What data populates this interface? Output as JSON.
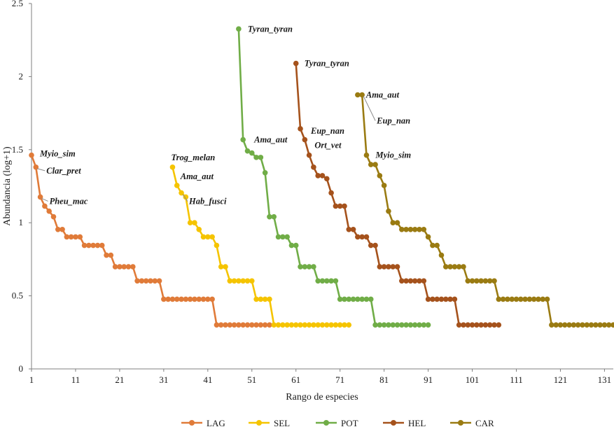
{
  "chart_data": {
    "type": "line",
    "title": "",
    "xlabel": "Rango de especies",
    "ylabel": "Abundancia (log+1)",
    "xlim": [
      1,
      133
    ],
    "ylim": [
      0,
      2.5
    ],
    "x_ticks": [
      1,
      11,
      21,
      31,
      41,
      51,
      61,
      71,
      81,
      91,
      101,
      111,
      121,
      131
    ],
    "y_ticks": [
      0,
      0.5,
      1,
      1.5,
      2,
      2.5
    ],
    "y_tick_labels": [
      "0",
      "0.5",
      "1",
      "1.5",
      "2",
      "2.5"
    ],
    "legend_position": "bottom-center",
    "series": [
      {
        "name": "LAG",
        "color": "#e07b39",
        "start": 1,
        "values": [
          1.462,
          1.38,
          1.176,
          1.114,
          1.079,
          1.041,
          0.954,
          0.954,
          0.903,
          0.903,
          0.903,
          0.903,
          0.845,
          0.845,
          0.845,
          0.845,
          0.845,
          0.778,
          0.778,
          0.699,
          0.699,
          0.699,
          0.699,
          0.699,
          0.602,
          0.602,
          0.602,
          0.602,
          0.602,
          0.602,
          0.477,
          0.477,
          0.477,
          0.477,
          0.477,
          0.477,
          0.477,
          0.477,
          0.477,
          0.477,
          0.477,
          0.477,
          0.301,
          0.301,
          0.301,
          0.301,
          0.301,
          0.301,
          0.301,
          0.301,
          0.301,
          0.301,
          0.301,
          0.301,
          0.301
        ]
      },
      {
        "name": "SEL",
        "color": "#f5c400",
        "start": 33,
        "values": [
          1.38,
          1.255,
          1.204,
          1.176,
          1.0,
          1.0,
          0.954,
          0.903,
          0.903,
          0.903,
          0.845,
          0.699,
          0.699,
          0.602,
          0.602,
          0.602,
          0.602,
          0.602,
          0.602,
          0.477,
          0.477,
          0.477,
          0.477,
          0.301,
          0.301,
          0.301,
          0.301,
          0.301,
          0.301,
          0.301,
          0.301,
          0.301,
          0.301,
          0.301,
          0.301,
          0.301,
          0.301,
          0.301,
          0.301,
          0.301,
          0.301
        ]
      },
      {
        "name": "POT",
        "color": "#70ad47",
        "start": 48,
        "values": [
          2.326,
          1.568,
          1.491,
          1.477,
          1.447,
          1.447,
          1.342,
          1.041,
          1.041,
          0.903,
          0.903,
          0.903,
          0.845,
          0.845,
          0.699,
          0.699,
          0.699,
          0.699,
          0.602,
          0.602,
          0.602,
          0.602,
          0.602,
          0.477,
          0.477,
          0.477,
          0.477,
          0.477,
          0.477,
          0.477,
          0.477,
          0.301,
          0.301,
          0.301,
          0.301,
          0.301,
          0.301,
          0.301,
          0.301,
          0.301,
          0.301,
          0.301,
          0.301,
          0.301
        ]
      },
      {
        "name": "HEL",
        "color": "#a5521c",
        "start": 61,
        "values": [
          2.09,
          1.643,
          1.568,
          1.462,
          1.38,
          1.322,
          1.322,
          1.301,
          1.204,
          1.114,
          1.114,
          1.114,
          0.954,
          0.954,
          0.903,
          0.903,
          0.903,
          0.845,
          0.845,
          0.699,
          0.699,
          0.699,
          0.699,
          0.699,
          0.602,
          0.602,
          0.602,
          0.602,
          0.602,
          0.602,
          0.477,
          0.477,
          0.477,
          0.477,
          0.477,
          0.477,
          0.477,
          0.301,
          0.301,
          0.301,
          0.301,
          0.301,
          0.301,
          0.301,
          0.301,
          0.301,
          0.301
        ]
      },
      {
        "name": "CAR",
        "color": "#9a7b12",
        "start": 75,
        "values": [
          1.875,
          1.875,
          1.462,
          1.398,
          1.398,
          1.322,
          1.255,
          1.079,
          1.0,
          1.0,
          0.954,
          0.954,
          0.954,
          0.954,
          0.954,
          0.954,
          0.903,
          0.845,
          0.845,
          0.778,
          0.699,
          0.699,
          0.699,
          0.699,
          0.699,
          0.602,
          0.602,
          0.602,
          0.602,
          0.602,
          0.602,
          0.602,
          0.477,
          0.477,
          0.477,
          0.477,
          0.477,
          0.477,
          0.477,
          0.477,
          0.477,
          0.477,
          0.477,
          0.477,
          0.301,
          0.301,
          0.301,
          0.301,
          0.301,
          0.301,
          0.301,
          0.301,
          0.301,
          0.301,
          0.301,
          0.301,
          0.301,
          0.301,
          0.301
        ]
      }
    ],
    "annotations": [
      {
        "series": "LAG",
        "rank": 1,
        "value": 1.462,
        "text": "Myio_sim",
        "leader": false
      },
      {
        "series": "LAG",
        "rank": 2,
        "value": 1.38,
        "text": "Clar_pret",
        "leader": true
      },
      {
        "series": "LAG",
        "rank": 3,
        "value": 1.176,
        "text": "Pheu_mac",
        "leader": true
      },
      {
        "series": "SEL",
        "rank": 33,
        "value": 1.38,
        "text": "Trog_melan",
        "leader": false
      },
      {
        "series": "SEL",
        "rank": 34,
        "value": 1.255,
        "text": "Ama_aut",
        "leader": false
      },
      {
        "series": "SEL",
        "rank": 35,
        "value": 1.204,
        "text": "Hab_fusci",
        "leader": true
      },
      {
        "series": "POT",
        "rank": 48,
        "value": 2.326,
        "text": "Tyran_tyran",
        "leader": false
      },
      {
        "series": "POT",
        "rank": 49,
        "value": 1.568,
        "text": "Ama_aut",
        "leader": false
      },
      {
        "series": "HEL",
        "rank": 61,
        "value": 2.09,
        "text": "Tyran_tyran",
        "leader": false
      },
      {
        "series": "HEL",
        "rank": 62,
        "value": 1.643,
        "text": "Eup_nan",
        "leader": false
      },
      {
        "series": "HEL",
        "rank": 63,
        "value": 1.568,
        "text": "Ort_vet",
        "leader": false
      },
      {
        "series": "CAR",
        "rank": 75,
        "value": 1.875,
        "text": "Ama_aut",
        "leader": false
      },
      {
        "series": "CAR",
        "rank": 76,
        "value": 1.875,
        "text": "Eup_nan",
        "leader": true
      },
      {
        "series": "CAR",
        "rank": 77,
        "value": 1.462,
        "text": "Myio_sim",
        "leader": false
      }
    ]
  }
}
